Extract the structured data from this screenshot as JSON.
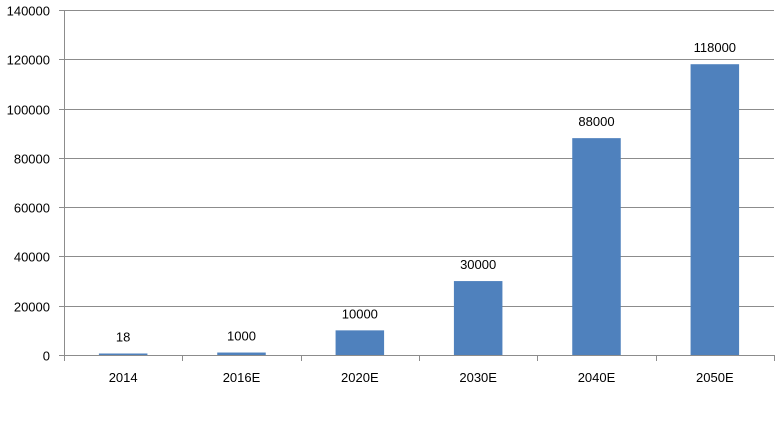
{
  "chart_data": {
    "type": "bar",
    "title": "",
    "xlabel": "",
    "ylabel": "",
    "categories": [
      "2014",
      "2016E",
      "2020E",
      "2030E",
      "2040E",
      "2050E"
    ],
    "values": [
      18,
      1000,
      10000,
      30000,
      88000,
      118000
    ],
    "data_labels": [
      "18",
      "1000",
      "10000",
      "30000",
      "88000",
      "118000"
    ],
    "ylim": [
      0,
      140000
    ],
    "yticks": [
      0,
      20000,
      40000,
      60000,
      80000,
      100000,
      120000,
      140000
    ],
    "ytick_labels": [
      "0",
      "20000",
      "40000",
      "60000",
      "80000",
      "100000",
      "120000",
      "140000"
    ],
    "grid": true,
    "legend": "none",
    "colors": {
      "bar": "#4f81bd",
      "grid": "#8c8c8c",
      "axis": "#8c8c8c"
    }
  }
}
